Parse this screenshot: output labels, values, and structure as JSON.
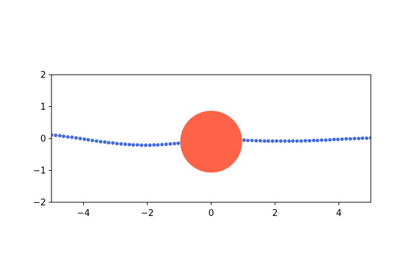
{
  "chart_data": {
    "type": "scatter",
    "xlim": [
      -5,
      5
    ],
    "ylim": [
      -2,
      2
    ],
    "grid": false,
    "x_ticks": [
      -4,
      -2,
      0,
      2,
      4
    ],
    "y_ticks": [
      -2,
      -1,
      0,
      1,
      2
    ],
    "x_tick_labels": [
      "−4",
      "−2",
      "0",
      "2",
      "4"
    ],
    "y_tick_labels": [
      "−2",
      "−1",
      "0",
      "1",
      "2"
    ],
    "series": [
      {
        "color": "#4169e1",
        "marker": "dot",
        "x": [
          -5.0,
          -4.87,
          -4.74,
          -4.62,
          -4.49,
          -4.36,
          -4.23,
          -4.1,
          -3.97,
          -3.85,
          -3.72,
          -3.59,
          -3.46,
          -3.33,
          -3.21,
          -3.08,
          -2.95,
          -2.82,
          -2.69,
          -2.56,
          -2.44,
          -2.31,
          -2.18,
          -2.05,
          -1.92,
          -1.79,
          -1.67,
          -1.54,
          -1.41,
          -1.28,
          -1.15,
          -1.03,
          -0.9,
          -0.77,
          -0.64,
          -0.51,
          -0.38,
          -0.26,
          -0.13,
          0.0,
          0.13,
          0.26,
          0.38,
          0.51,
          0.64,
          0.77,
          0.9,
          1.03,
          1.15,
          1.28,
          1.41,
          1.54,
          1.67,
          1.79,
          1.92,
          2.05,
          2.18,
          2.31,
          2.44,
          2.56,
          2.69,
          2.82,
          2.95,
          3.08,
          3.21,
          3.33,
          3.46,
          3.59,
          3.72,
          3.85,
          3.97,
          4.1,
          4.23,
          4.36,
          4.49,
          4.62,
          4.74,
          4.87,
          5.0
        ],
        "y": [
          0.11,
          0.1,
          0.09,
          0.07,
          0.05,
          0.04,
          0.02,
          0.0,
          -0.02,
          -0.04,
          -0.06,
          -0.08,
          -0.1,
          -0.11,
          -0.13,
          -0.14,
          -0.16,
          -0.17,
          -0.18,
          -0.19,
          -0.2,
          -0.2,
          -0.21,
          -0.21,
          -0.21,
          -0.2,
          -0.2,
          -0.19,
          -0.18,
          -0.17,
          -0.16,
          -0.15,
          -0.14,
          -0.12,
          -0.11,
          -0.09,
          -0.08,
          -0.06,
          -0.05,
          -0.03,
          -0.02,
          -0.01,
          0.01,
          0.02,
          0.03,
          0.04,
          0.05,
          -0.05,
          -0.06,
          -0.06,
          -0.07,
          -0.07,
          -0.08,
          -0.08,
          -0.08,
          -0.08,
          -0.08,
          -0.08,
          -0.08,
          -0.08,
          -0.08,
          -0.08,
          -0.07,
          -0.07,
          -0.06,
          -0.06,
          -0.05,
          -0.05,
          -0.04,
          -0.03,
          -0.03,
          -0.02,
          -0.01,
          -0.01,
          0.0,
          0.0,
          0.01,
          0.01,
          0.02
        ]
      }
    ],
    "circle": {
      "center_x": 0.0,
      "center_y": -0.1,
      "radius": 0.97,
      "color": "#ff6347"
    }
  }
}
